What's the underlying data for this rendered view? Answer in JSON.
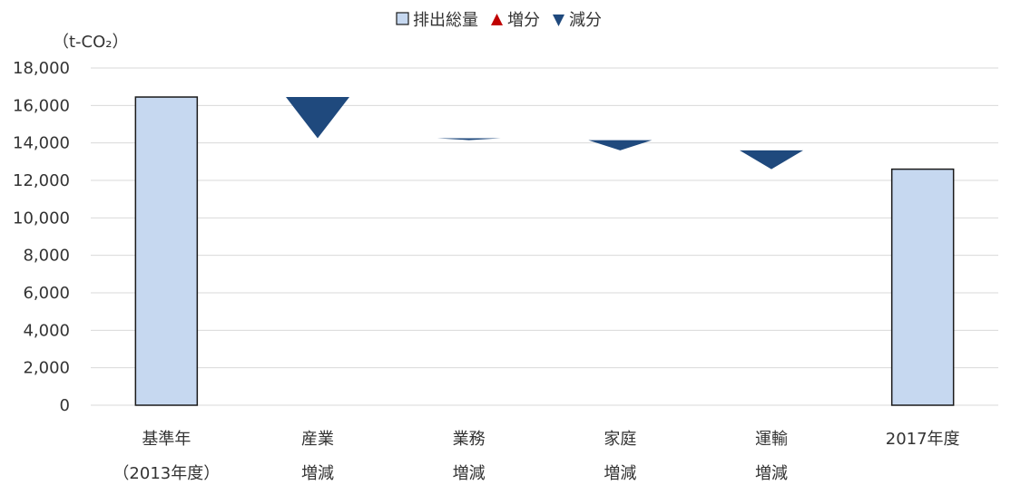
{
  "chart_data": {
    "type": "bar",
    "subtype": "waterfall",
    "unit_label": "（t-CO₂）",
    "legend": {
      "position": "top",
      "items": [
        {
          "label": "排出総量",
          "marker": "square",
          "color": "#c6d8f0"
        },
        {
          "label": "増分",
          "marker": "triangle-up",
          "color": "#c00000"
        },
        {
          "label": "減分",
          "marker": "triangle-down",
          "color": "#1f497d"
        }
      ]
    },
    "categories": [
      [
        "基準年",
        "（2013年度）"
      ],
      [
        "産業",
        "増減"
      ],
      [
        "業務",
        "増減"
      ],
      [
        "家庭",
        "増減"
      ],
      [
        "運輸",
        "増減"
      ],
      [
        "2017年度"
      ]
    ],
    "series": [
      {
        "name": "排出総量",
        "type": "total",
        "values": [
          16450,
          null,
          null,
          null,
          null,
          12600
        ]
      },
      {
        "name": "減分",
        "type": "decrease",
        "from": [
          null,
          16450,
          14250,
          14150,
          13600,
          null
        ],
        "to": [
          null,
          14250,
          14150,
          13600,
          12600,
          null
        ]
      }
    ],
    "ylim": [
      0,
      18000
    ],
    "yticks": [
      0,
      2000,
      4000,
      6000,
      8000,
      10000,
      12000,
      14000,
      16000,
      18000
    ],
    "ytick_labels": [
      "0",
      "2,000",
      "4,000",
      "6,000",
      "8,000",
      "10,000",
      "12,000",
      "14,000",
      "16,000",
      "18,000"
    ],
    "grid": true,
    "colors": {
      "total_fill": "#c6d8f0",
      "total_stroke": "#1a1a1a",
      "decrease": "#1f497d",
      "increase": "#c00000",
      "grid": "#d9d9d9"
    }
  }
}
